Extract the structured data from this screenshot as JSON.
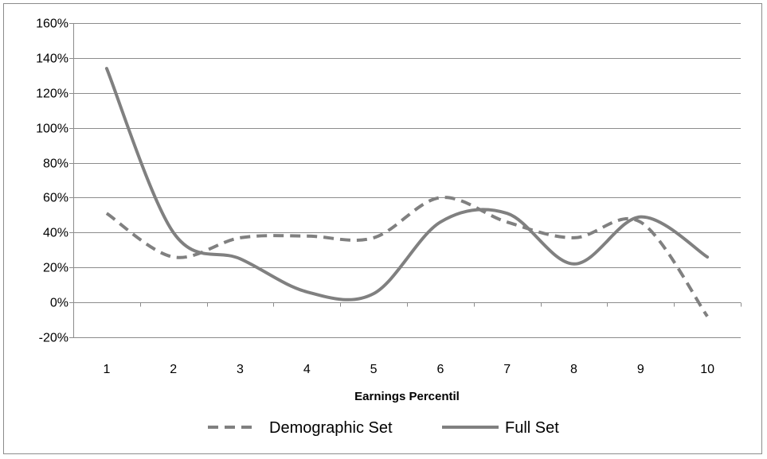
{
  "chart_data": {
    "type": "line",
    "title": "",
    "xlabel": "Earnings Percentil",
    "ylabel": "",
    "categories": [
      "1",
      "2",
      "3",
      "4",
      "5",
      "6",
      "7",
      "8",
      "9",
      "10"
    ],
    "ylim": [
      -20,
      160
    ],
    "yticks": [
      -20,
      0,
      20,
      40,
      60,
      80,
      100,
      120,
      140,
      160
    ],
    "ytick_labels": [
      "-20%",
      "0%",
      "20%",
      "40%",
      "60%",
      "80%",
      "100%",
      "120%",
      "140%",
      "160%"
    ],
    "grid": "horizontal",
    "legend_position": "bottom",
    "smooth": true,
    "series": [
      {
        "name": "Demographic Set",
        "style": "dashed",
        "color": "#808080",
        "values": [
          51,
          26,
          37,
          38,
          37,
          60,
          46,
          37,
          46,
          -8
        ]
      },
      {
        "name": "Full Set",
        "style": "solid",
        "color": "#808080",
        "values": [
          134,
          40,
          25,
          6,
          5,
          46,
          51,
          22,
          49,
          26
        ]
      }
    ]
  }
}
